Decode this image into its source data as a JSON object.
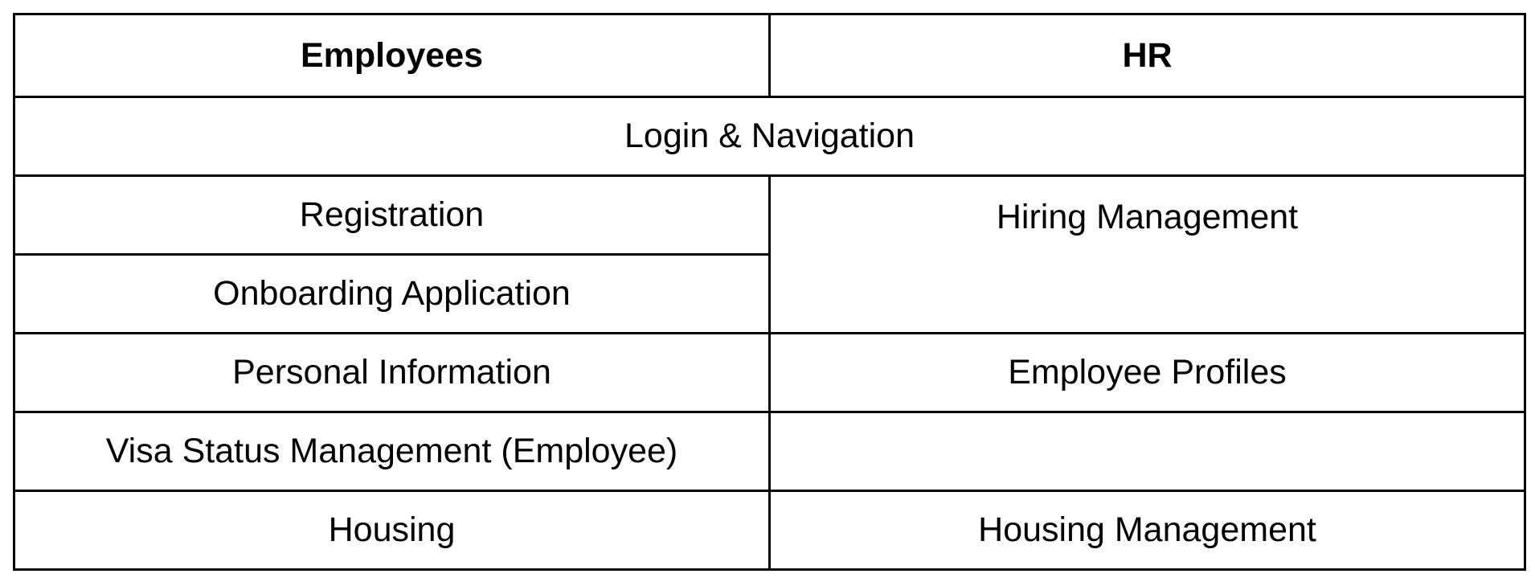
{
  "table": {
    "headers": {
      "employees": "Employees",
      "hr": "HR"
    },
    "shared_row": "Login & Navigation",
    "rows": {
      "registration": "Registration",
      "hiring_management": "Hiring Management",
      "onboarding_application": "Onboarding Application",
      "personal_information": "Personal Information",
      "employee_profiles": "Employee Profiles",
      "visa_status_management": "Visa Status Management (Employee)",
      "housing": "Housing",
      "housing_management": "Housing Management"
    }
  }
}
